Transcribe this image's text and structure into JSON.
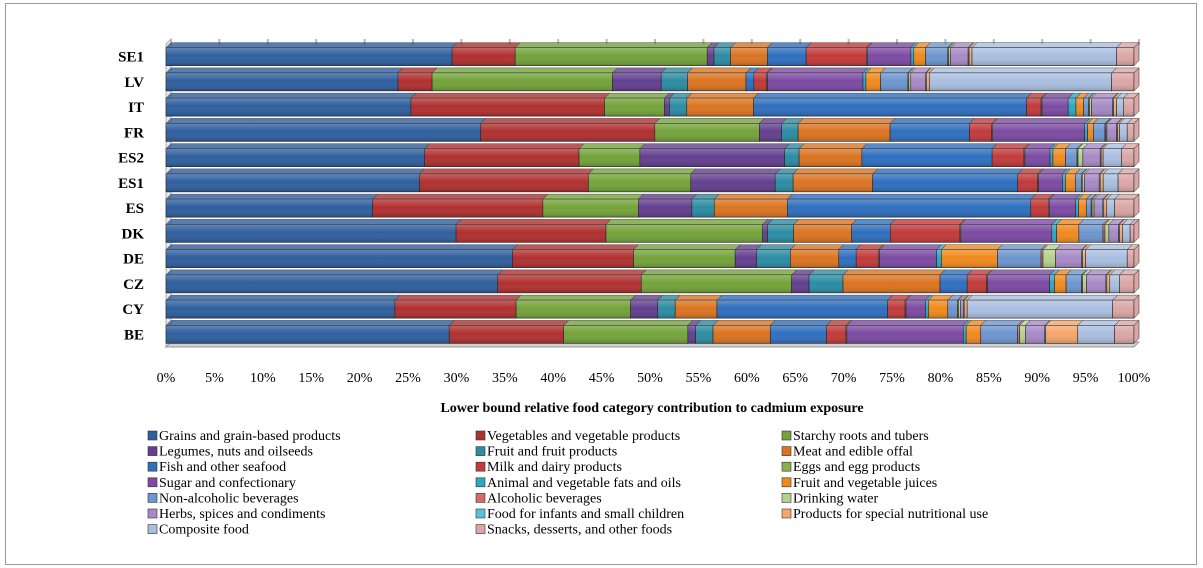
{
  "chart_data": {
    "type": "bar",
    "orientation": "horizontal",
    "stacked": "percent",
    "title": "",
    "xlabel": "Lower bound relative food category contribution to cadmium exposure",
    "ylabel": "",
    "xlim": [
      0,
      100
    ],
    "x_tick_labels": [
      "0%",
      "5%",
      "10%",
      "15%",
      "20%",
      "25%",
      "30%",
      "35%",
      "40%",
      "45%",
      "50%",
      "55%",
      "60%",
      "65%",
      "70%",
      "75%",
      "80%",
      "85%",
      "90%",
      "95%",
      "100%"
    ],
    "grid": false,
    "legend_position": "bottom",
    "categories": [
      "SE1",
      "LV",
      "IT",
      "FR",
      "ES2",
      "ES1",
      "ES",
      "DK",
      "DE",
      "CZ",
      "CY",
      "BE"
    ],
    "series": [
      {
        "name": "Grains and grain-based products",
        "color": "#2f5f9e",
        "values": [
          29.5,
          23.8,
          25.3,
          32.5,
          26.8,
          25.5,
          21.2,
          30.0,
          35.8,
          34.2,
          23.6,
          29.2
        ]
      },
      {
        "name": "Vegetables and vegetable products",
        "color": "#b03030",
        "values": [
          6.5,
          3.5,
          20.0,
          18.0,
          16.0,
          17.0,
          17.5,
          15.5,
          12.5,
          14.8,
          12.5,
          11.8
        ]
      },
      {
        "name": "Starchy roots and tubers",
        "color": "#74a33a",
        "values": [
          19.8,
          18.5,
          6.2,
          10.8,
          6.3,
          10.3,
          9.8,
          16.2,
          10.5,
          15.5,
          11.8,
          12.8
        ]
      },
      {
        "name": "Legumes, nuts and oilseeds",
        "color": "#633f8f",
        "values": [
          0.7,
          5.0,
          0.5,
          2.3,
          15.0,
          8.5,
          5.5,
          0.5,
          2.2,
          1.8,
          2.8,
          0.8
        ]
      },
      {
        "name": "Fruit and fruit products",
        "color": "#2b8ca3",
        "values": [
          1.7,
          2.7,
          1.8,
          1.7,
          1.5,
          1.8,
          2.3,
          2.7,
          3.5,
          3.5,
          1.8,
          1.8
        ]
      },
      {
        "name": "Meat and edible offal",
        "color": "#db7421",
        "values": [
          3.8,
          6.0,
          6.9,
          9.5,
          6.5,
          8.0,
          7.5,
          6.0,
          5.0,
          10.0,
          4.3,
          5.9
        ]
      },
      {
        "name": "Fish and other seafood",
        "color": "#2f6fbf",
        "values": [
          4.0,
          0.8,
          28.2,
          8.2,
          13.5,
          14.6,
          25.0,
          4.0,
          1.8,
          2.8,
          17.6,
          5.8
        ]
      },
      {
        "name": "Milk and dairy products",
        "color": "#c23a3a",
        "values": [
          6.2,
          1.3,
          1.5,
          2.3,
          3.3,
          2.0,
          1.8,
          7.2,
          2.3,
          2.0,
          1.8,
          2.0
        ]
      },
      {
        "name": "Eggs and egg products",
        "color": "#8ab04a",
        "values": [
          0.1,
          0.1,
          0.1,
          0.1,
          0.1,
          0.1,
          0.1,
          0.1,
          0.1,
          0.1,
          0.1,
          0.1
        ]
      },
      {
        "name": "Sugar and confectionary",
        "color": "#7c4aa3",
        "values": [
          4.5,
          9.8,
          2.7,
          9.5,
          2.6,
          2.4,
          2.7,
          9.4,
          5.9,
          6.4,
          2.0,
          12.0
        ]
      },
      {
        "name": "Animal and vegetable fats and oils",
        "color": "#2fa6c4",
        "values": [
          0.3,
          0.3,
          0.8,
          0.3,
          0.3,
          0.3,
          0.3,
          0.5,
          0.5,
          0.5,
          0.3,
          0.3
        ]
      },
      {
        "name": "Fruit and vegetable juices",
        "color": "#f08a1e",
        "values": [
          1.2,
          1.5,
          0.8,
          0.6,
          1.3,
          1.0,
          0.8,
          2.3,
          5.8,
          1.2,
          2.0,
          1.5
        ]
      },
      {
        "name": "Non-alcoholic beverages",
        "color": "#6d96cf",
        "values": [
          2.3,
          2.8,
          0.5,
          1.2,
          1.2,
          0.6,
          0.5,
          2.5,
          4.5,
          1.6,
          1.0,
          3.8
        ]
      },
      {
        "name": "Alcoholic beverages",
        "color": "#d46b6b",
        "values": [
          0.1,
          0.1,
          0.1,
          0.1,
          0.1,
          0.1,
          0.1,
          0.2,
          0.2,
          0.1,
          0.1,
          0.2
        ]
      },
      {
        "name": "Drinking water",
        "color": "#b5d18e",
        "values": [
          0.2,
          0.2,
          0.2,
          0.1,
          0.5,
          0.2,
          0.2,
          0.4,
          1.3,
          0.4,
          0.2,
          0.6
        ]
      },
      {
        "name": "Herbs, spices and condiments",
        "color": "#a88ac6",
        "values": [
          1.8,
          1.5,
          2.2,
          1.0,
          1.8,
          1.5,
          0.9,
          1.0,
          2.7,
          2.0,
          0.3,
          2.0
        ]
      },
      {
        "name": "Food for infants and small children",
        "color": "#57c2dc",
        "values": [
          0.1,
          0.1,
          0.1,
          0.1,
          0.1,
          0.1,
          0.1,
          0.1,
          0.1,
          0.1,
          0.1,
          0.1
        ]
      },
      {
        "name": "Products for special nutritional use",
        "color": "#f5a66a",
        "values": [
          0.3,
          0.3,
          0.3,
          0.2,
          0.2,
          0.3,
          0.3,
          0.3,
          0.3,
          0.3,
          0.3,
          3.3
        ]
      },
      {
        "name": "Composite food",
        "color": "#a9bfe0",
        "values": [
          14.9,
          18.7,
          0.7,
          0.8,
          1.9,
          1.5,
          0.8,
          0.8,
          4.3,
          1.0,
          15.0,
          3.8
        ]
      },
      {
        "name": "Snacks, desserts, and other foods",
        "color": "#dba6a6",
        "values": [
          1.8,
          2.3,
          1.1,
          0.7,
          1.3,
          1.6,
          2.0,
          0.4,
          0.7,
          1.5,
          2.2,
          2.0
        ]
      }
    ]
  }
}
